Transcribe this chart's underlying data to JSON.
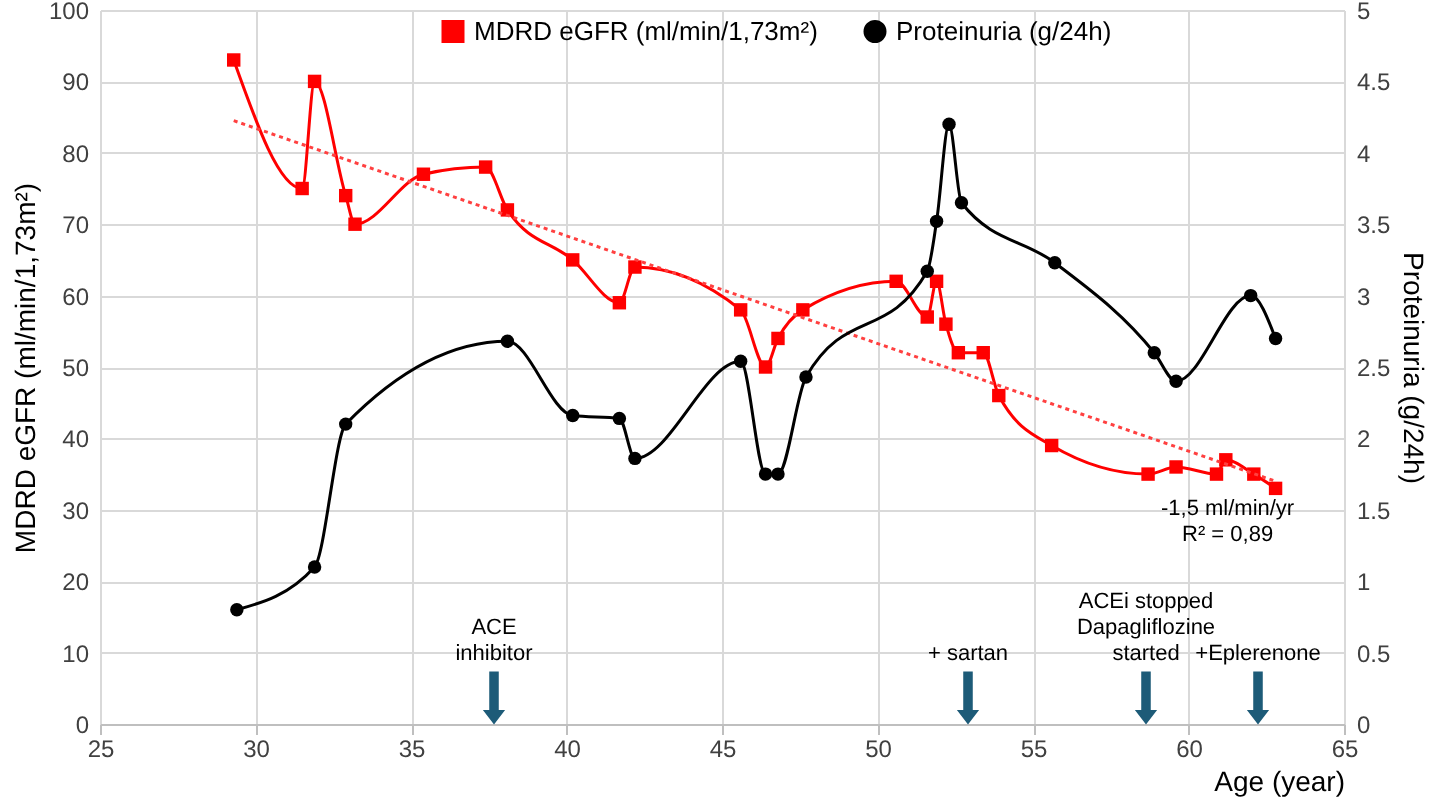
{
  "chart_data": {
    "type": "line",
    "xlabel": "Age (year)",
    "ylabel": "MDRD eGFR (ml/min/1,73m²)",
    "y2label": "Proteinuria (g/24h)",
    "xlim": [
      25,
      65
    ],
    "xticks": [
      25,
      30,
      35,
      40,
      45,
      50,
      55,
      60,
      65
    ],
    "ylim": [
      0,
      100
    ],
    "yticks": [
      0,
      10,
      20,
      30,
      40,
      50,
      60,
      70,
      80,
      90,
      100
    ],
    "y2lim": [
      0,
      5
    ],
    "y2ticks": [
      0,
      0.5,
      1,
      1.5,
      2,
      2.5,
      3,
      3.5,
      4,
      4.5,
      5
    ],
    "grid": true,
    "legend": "top",
    "series": [
      {
        "name": "MDRD eGFR (ml/min/1,73m²)",
        "color": "#ff0000",
        "marker": "square",
        "x": [
          29.3,
          31.5,
          31.9,
          32.9,
          33.2,
          35.4,
          37.4,
          38.1,
          40.2,
          41.7,
          42.2,
          45.6,
          46.4,
          46.8,
          47.6,
          50.6,
          51.6,
          51.9,
          52.2,
          52.6,
          53.4,
          53.9,
          55.6,
          58.7,
          59.6,
          60.9,
          61.2,
          62.1,
          62.8
        ],
        "values": [
          93,
          75,
          90,
          74,
          70,
          77,
          78,
          72,
          65,
          59,
          64,
          58,
          50,
          54,
          58,
          62,
          57,
          62,
          56,
          52,
          52,
          46,
          39,
          35,
          36,
          35,
          37,
          35,
          33
        ]
      },
      {
        "name": "Proteinuria (g/24h)",
        "color": "#000000",
        "marker": "circle",
        "axis": "y2",
        "x": [
          29.4,
          31.9,
          32.9,
          38.1,
          40.2,
          41.7,
          42.2,
          45.6,
          46.4,
          46.8,
          47.7,
          51.6,
          51.9,
          52.3,
          52.7,
          55.7,
          58.9,
          59.6,
          62.0,
          62.8
        ],
        "values": [
          0.8,
          1.1,
          2.1,
          2.68,
          2.16,
          2.14,
          1.86,
          2.54,
          1.75,
          1.75,
          2.43,
          3.17,
          3.52,
          4.2,
          3.65,
          3.23,
          2.6,
          2.4,
          3.0,
          2.7
        ]
      },
      {
        "type": "line",
        "color": "#ff4040",
        "marker": "none",
        "line_style": "dotted",
        "x": [
          29.3,
          62.8
        ],
        "values": [
          84.5,
          34
        ]
      }
    ],
    "annotations": [
      "ACE\ninhibitor",
      "+ sartan",
      "ACEi stopped\nDapagliflozine\nstarted",
      "+Eplerenone",
      "-1,5 ml/min/yr\nR² = 0,89"
    ]
  }
}
